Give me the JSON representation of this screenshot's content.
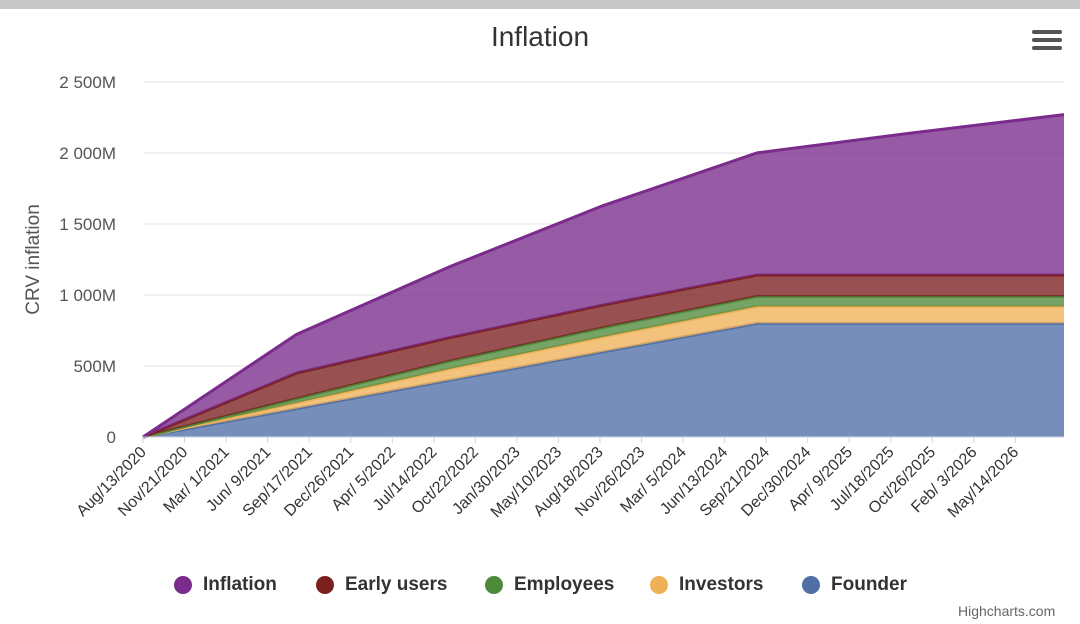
{
  "chart_data": {
    "type": "area",
    "stacked": true,
    "title": "Inflation",
    "ylabel": "CRV inflation",
    "ylim": [
      0,
      2500
    ],
    "y_unit": "M",
    "y_tick_labels": [
      "0",
      "500M",
      "1 000M",
      "1 500M",
      "2 000M",
      "2 500M"
    ],
    "y_ticks": [
      0,
      500,
      1000,
      1500,
      2000,
      2500
    ],
    "x_tick_labels": [
      "Aug/13/2020",
      "Nov/21/2020",
      "Mar/ 1/2021",
      "Jun/ 9/2021",
      "Sep/17/2021",
      "Dec/26/2021",
      "Apr/ 5/2022",
      "Jul/14/2022",
      "Oct/22/2022",
      "Jan/30/2023",
      "May/10/2023",
      "Aug/18/2023",
      "Nov/26/2023",
      "Mar/ 5/2024",
      "Jun/13/2024",
      "Sep/21/2024",
      "Dec/30/2024",
      "Apr/ 9/2025",
      "Jul/18/2025",
      "Oct/26/2025",
      "Feb/ 3/2026",
      "May/14/2026"
    ],
    "x": [
      "2020-08-13",
      "2021-08-13",
      "2022-08-13",
      "2023-08-13",
      "2024-08-13",
      "2025-08-13",
      "2026-08-13"
    ],
    "grid": true,
    "legend_position": "bottom",
    "series": [
      {
        "name": "Founder",
        "color": "#4f6fa6",
        "values": [
          0,
          200,
          400,
          600,
          800,
          800,
          800
        ]
      },
      {
        "name": "Investors",
        "color": "#efb157",
        "values": [
          0,
          40,
          80,
          105,
          120,
          120,
          120
        ]
      },
      {
        "name": "Employees",
        "color": "#4f8a3c",
        "values": [
          0,
          30,
          55,
          65,
          70,
          70,
          70
        ]
      },
      {
        "name": "Early users",
        "color": "#7b1f1f",
        "values": [
          0,
          180,
          165,
          160,
          151,
          151,
          151
        ]
      },
      {
        "name": "Inflation",
        "color": "#7a2b8c",
        "values": [
          0,
          272,
          500,
          700,
          860,
          999,
          1129
        ]
      }
    ]
  },
  "legend": [
    {
      "name": "Inflation",
      "color": "#7a2b8c"
    },
    {
      "name": "Early users",
      "color": "#7b1f1f"
    },
    {
      "name": "Employees",
      "color": "#4f8a3c"
    },
    {
      "name": "Investors",
      "color": "#efb157"
    },
    {
      "name": "Founder",
      "color": "#4f6fa6"
    }
  ],
  "credits": "Highcharts.com",
  "menu_icon": "hamburger-menu-icon"
}
